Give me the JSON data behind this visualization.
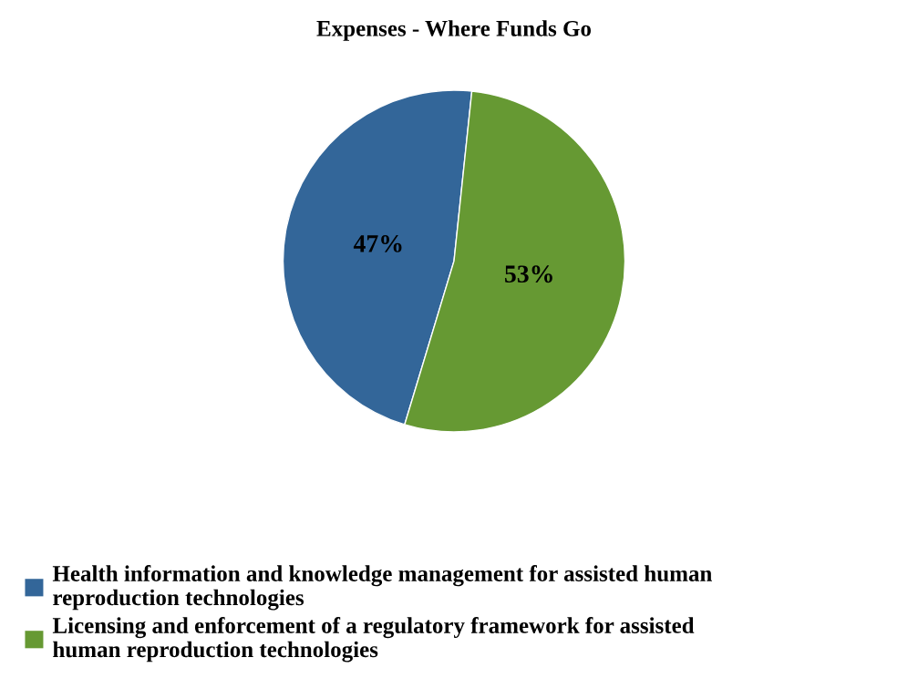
{
  "chart_data": {
    "type": "pie",
    "title": "Expenses - Where Funds Go",
    "categories": [
      "Health information and knowledge management for assisted human reproduction technologies",
      "Licensing and enforcement of a regulatory framework for assisted human reproduction technologies"
    ],
    "values": [
      47,
      53
    ],
    "colors": [
      "#336699",
      "#669933"
    ],
    "value_labels": [
      "47%",
      "53%"
    ],
    "legend": "bottom"
  }
}
